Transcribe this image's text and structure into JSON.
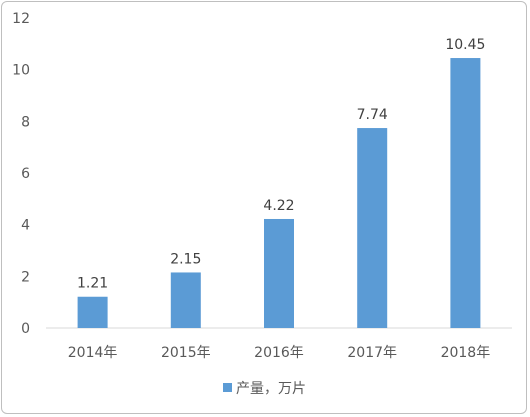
{
  "chart_data": {
    "type": "bar",
    "categories": [
      "2014年",
      "2015年",
      "2016年",
      "2017年",
      "2018年"
    ],
    "series": [
      {
        "name": "产量，万片",
        "values": [
          1.21,
          2.15,
          4.22,
          7.74,
          10.45
        ],
        "color": "#5b9bd5"
      }
    ],
    "data_labels": [
      "1.21",
      "2.15",
      "4.22",
      "7.74",
      "10.45"
    ],
    "yticks": [
      "0",
      "2",
      "4",
      "6",
      "8",
      "10",
      "12"
    ],
    "ylim": [
      0,
      12
    ],
    "grid": false,
    "legend_position": "bottom",
    "axis_color": "#d9d9d9"
  }
}
